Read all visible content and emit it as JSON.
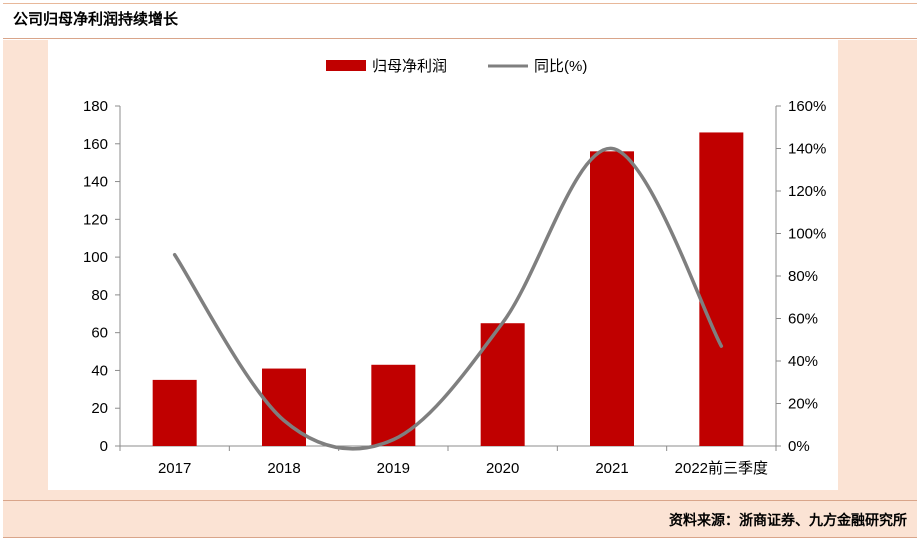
{
  "header": {
    "title": "公司归母净利润持续增长"
  },
  "footer": {
    "source": "资料来源：浙商证券、九方金融研究所"
  },
  "chart_data": {
    "type": "bar",
    "categories": [
      "2017",
      "2018",
      "2019",
      "2020",
      "2021",
      "2022前三季度"
    ],
    "series": [
      {
        "name": "归母净利润",
        "type": "bar",
        "axis": "left",
        "color": "#c00000",
        "values": [
          35,
          41,
          43,
          65,
          156,
          166
        ]
      },
      {
        "name": "同比(%)",
        "type": "line",
        "axis": "right",
        "color": "#7f7f7f",
        "values": [
          90,
          12,
          3,
          58,
          140,
          47
        ]
      }
    ],
    "y_left": {
      "min": 0,
      "max": 180,
      "step": 20
    },
    "y_right": {
      "min": 0,
      "max": 160,
      "step": 20,
      "suffix": "%"
    },
    "legend": "top-center",
    "grid": false
  }
}
